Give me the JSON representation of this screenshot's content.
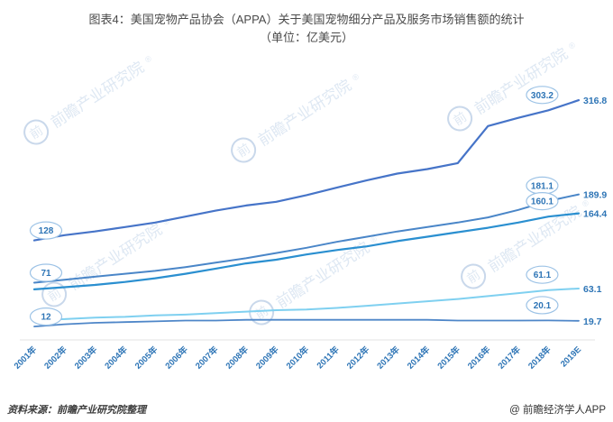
{
  "header": {
    "title_line1": "图表4：美国宠物产品协会（APPA）关于美国宠物细分产品及服务市场销售额的统计",
    "title_line2": "（单位：亿美元）"
  },
  "footer": {
    "source": "资料来源：前瞻产业研究院整理",
    "brand": "@ 前瞻经济学人APP"
  },
  "watermark": {
    "logo_char": "前",
    "text": "前瞻产业研究院",
    "reg": "®"
  },
  "colors": {
    "axis_label": "#2e75b6",
    "bubble_border": "#9dc3e6",
    "bubble_fill": "#ffffff",
    "bubble_text": "#2e75b6",
    "end_label": "#2e75b6",
    "axis_line": "#e3e3e3"
  },
  "chart_data": {
    "type": "line",
    "title": "图表4：美国宠物产品协会（APPA）关于美国宠物细分产品及服务市场销售额的统计（单位：亿美元）",
    "xlabel": "",
    "ylabel": "亿美元",
    "ylim": [
      0,
      340
    ],
    "grid": false,
    "legend_position": "none",
    "x": [
      "2001年",
      "2002年",
      "2003年",
      "2004年",
      "2005年",
      "2006年",
      "2007年",
      "2008年",
      "2009年",
      "2010年",
      "2011年",
      "2012年",
      "2013年",
      "2014年",
      "2015年",
      "2016年",
      "2017年",
      "2018年",
      "2019E"
    ],
    "series": [
      {
        "name": "line1",
        "color": "#4674c8",
        "width": 2.2,
        "values": [
          128,
          135,
          140,
          146,
          152,
          160,
          168,
          175,
          180,
          189,
          199,
          209,
          218,
          224,
          232,
          282,
          293,
          303.2,
          316.8
        ],
        "start_label": "128",
        "label_2018": "303.2",
        "label_2019": "316.8"
      },
      {
        "name": "line2",
        "color": "#4a86c8",
        "width": 2,
        "values": [
          71,
          75,
          79,
          83,
          87,
          92,
          98,
          104,
          111,
          118,
          126,
          133,
          140,
          146,
          152,
          159,
          169,
          181.1,
          189.9
        ],
        "start_label": "71",
        "label_2018": "181.1",
        "label_2019": "189.9"
      },
      {
        "name": "line3",
        "color": "#2a8fd0",
        "width": 2.2,
        "values": [
          62,
          65,
          68,
          72,
          77,
          83,
          90,
          97,
          102,
          109,
          115,
          120,
          127,
          133,
          139,
          145,
          152,
          160.1,
          164.4
        ],
        "start_label": null,
        "label_2018": "160.1",
        "label_2019": "164.4"
      },
      {
        "name": "line4",
        "color": "#7fd0f0",
        "width": 2,
        "values": [
          21,
          22,
          24,
          25,
          27,
          28,
          30,
          32,
          34,
          35,
          37,
          40,
          43,
          46,
          49,
          53,
          57,
          61.1,
          63.1
        ],
        "start_label": null,
        "label_2018": "61.1",
        "label_2019": "63.1"
      },
      {
        "name": "line5",
        "color": "#4e86c8",
        "width": 1.8,
        "values": [
          12,
          15,
          17,
          18,
          19,
          20,
          20,
          21,
          21,
          21,
          21,
          21,
          21,
          21,
          20,
          20,
          20,
          20.1,
          19.7
        ],
        "start_label": "12",
        "label_2018": "20.1",
        "label_2019": "19.7"
      }
    ]
  }
}
